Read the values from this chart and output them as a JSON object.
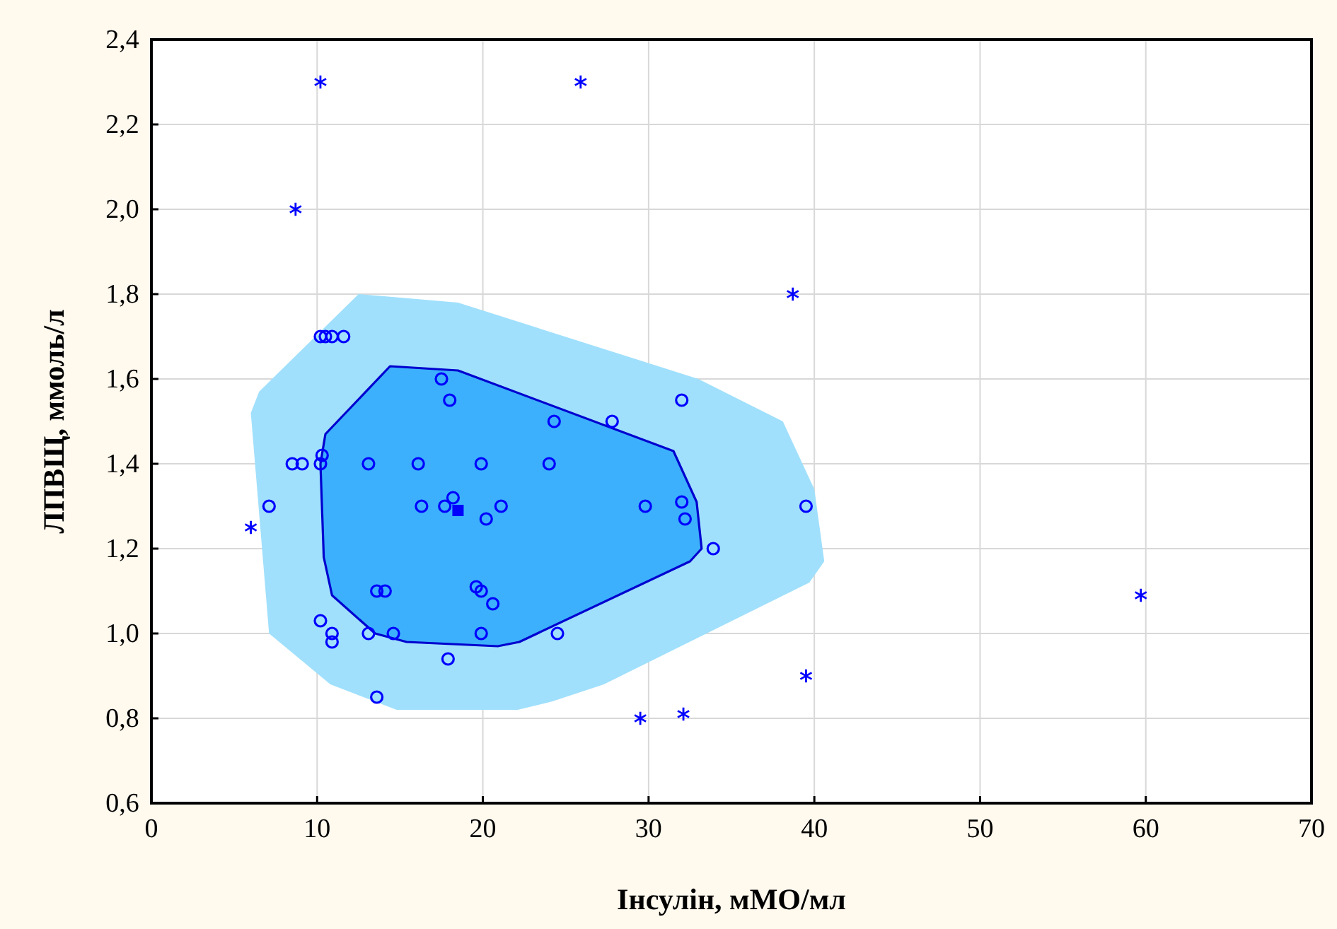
{
  "chart_data": {
    "type": "scatter",
    "xlabel": "Інсулін, мМО/мл",
    "ylabel": "ЛПВЩ, ммоль/л",
    "xlim": [
      0,
      70
    ],
    "xticks": [
      0,
      10,
      20,
      30,
      40,
      50,
      60,
      70
    ],
    "ylim": [
      0.6,
      2.4
    ],
    "yticks": [
      {
        "value": 0.6,
        "label": "0,6"
      },
      {
        "value": 0.8,
        "label": "0,8"
      },
      {
        "value": 1.0,
        "label": "1,0"
      },
      {
        "value": 1.2,
        "label": "1,2"
      },
      {
        "value": 1.4,
        "label": "1,4"
      },
      {
        "value": 1.6,
        "label": "1,6"
      },
      {
        "value": 1.8,
        "label": "1,8"
      },
      {
        "value": 2.0,
        "label": "2,0"
      },
      {
        "value": 2.2,
        "label": "2,2"
      },
      {
        "value": 2.4,
        "label": "2,4"
      }
    ],
    "grid": true,
    "series": [
      {
        "type": "area",
        "color": "#a0e0fc",
        "x": [
          12.5,
          18.5,
          33,
          38.1,
          40,
          40.6,
          39.7,
          27.3,
          24.2,
          22.1,
          14.8,
          10.8,
          7.1,
          6,
          6.5
        ],
        "values": [
          1.8,
          1.78,
          1.6,
          1.5,
          1.34,
          1.17,
          1.12,
          0.88,
          0.84,
          0.82,
          0.82,
          0.88,
          1.0,
          1.52,
          1.57
        ]
      },
      {
        "type": "area",
        "color": "#3cb0fc",
        "line_style": "solid",
        "x": [
          14.4,
          18.5,
          31.5,
          32.9,
          33.2,
          32.5,
          22.2,
          20.9,
          15.4,
          13.5,
          10.9,
          10.4,
          10.2,
          10.5
        ],
        "values": [
          1.63,
          1.62,
          1.43,
          1.31,
          1.2,
          1.17,
          0.98,
          0.97,
          0.98,
          1.0,
          1.09,
          1.18,
          1.4,
          1.47
        ]
      },
      {
        "marker": "circle",
        "color": "#0000ff",
        "x": [
          10.2,
          10.5,
          10.9,
          11.6,
          17.5,
          18.0,
          8.5,
          9.1,
          10.2,
          10.3,
          13.1,
          16.1,
          19.9,
          24.0,
          24.3,
          27.8,
          32.0,
          7.1,
          16.3,
          17.7,
          18.2,
          20.2,
          21.1,
          29.8,
          32.0,
          32.2,
          33.9,
          39.5,
          13.6,
          14.1,
          19.6,
          19.9,
          20.6,
          10.2,
          10.9,
          10.9,
          13.1,
          14.6,
          19.9,
          17.9,
          13.6,
          24.5
        ],
        "values": [
          1.7,
          1.7,
          1.7,
          1.7,
          1.6,
          1.55,
          1.4,
          1.4,
          1.4,
          1.42,
          1.4,
          1.4,
          1.4,
          1.4,
          1.5,
          1.5,
          1.55,
          1.3,
          1.3,
          1.3,
          1.32,
          1.27,
          1.3,
          1.3,
          1.31,
          1.27,
          1.2,
          1.3,
          1.1,
          1.1,
          1.11,
          1.1,
          1.07,
          1.03,
          1.0,
          0.98,
          1.0,
          1.0,
          1.0,
          0.94,
          0.85,
          1.0
        ]
      },
      {
        "marker": "square",
        "color": "#0000ff",
        "x": [
          18.5
        ],
        "values": [
          1.29
        ]
      },
      {
        "marker": "cross",
        "color": "#0000ff",
        "x": [
          10.2,
          25.9,
          8.7,
          38.7,
          6.0,
          59.7,
          39.5,
          29.5,
          32.1
        ],
        "values": [
          2.3,
          2.3,
          2.0,
          1.8,
          1.25,
          1.09,
          0.9,
          0.8,
          0.81
        ]
      }
    ]
  }
}
